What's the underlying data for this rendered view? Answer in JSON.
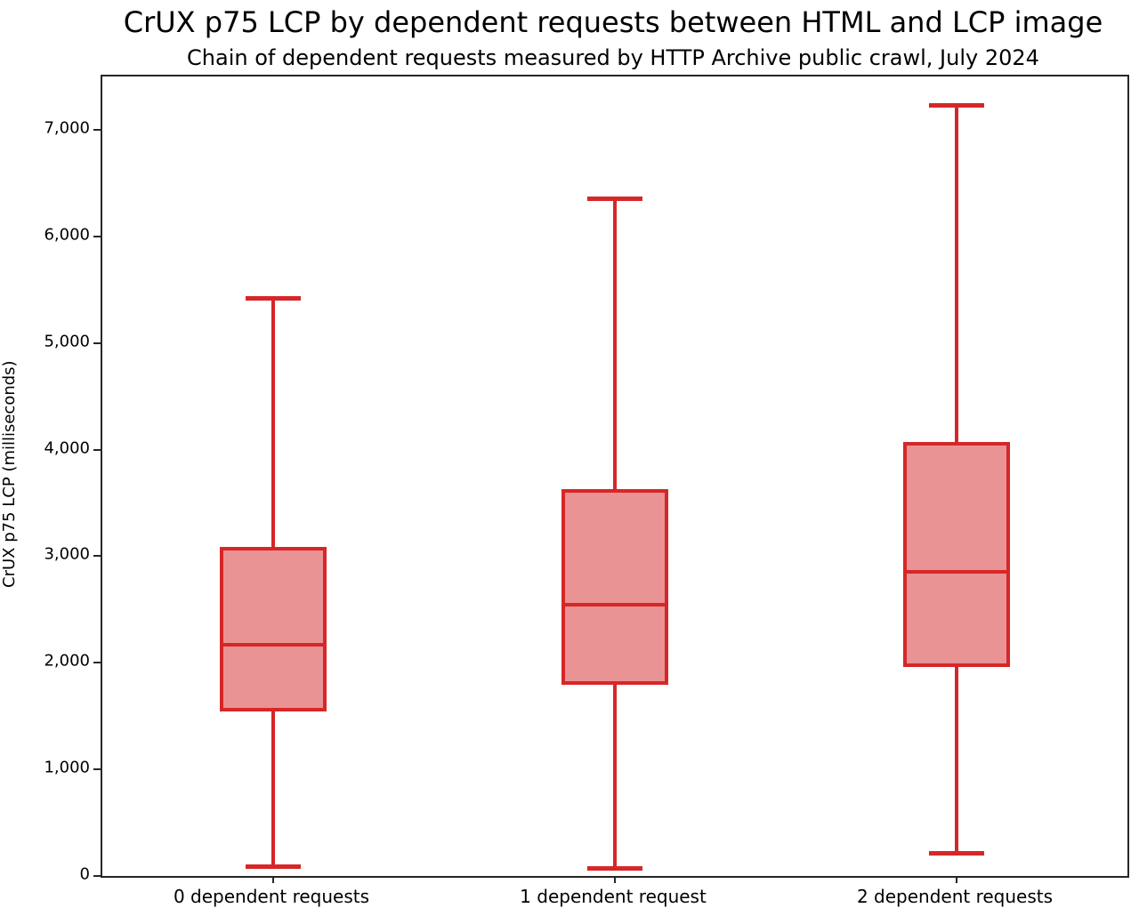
{
  "chart_data": {
    "type": "boxplot",
    "title": "CrUX p75 LCP by dependent requests between HTML and LCP image",
    "subtitle": "Chain of dependent requests measured by HTTP Archive public crawl, July 2024",
    "ylabel": "CrUX p75 LCP (milliseconds)",
    "xlabel": "",
    "ylim": [
      0,
      7500
    ],
    "grid": false,
    "legend": "none",
    "yticks": [
      {
        "value": 0,
        "label": "0"
      },
      {
        "value": 1000,
        "label": "1,000"
      },
      {
        "value": 2000,
        "label": "2,000"
      },
      {
        "value": 3000,
        "label": "3,000"
      },
      {
        "value": 4000,
        "label": "4,000"
      },
      {
        "value": 5000,
        "label": "5,000"
      },
      {
        "value": 6000,
        "label": "6,000"
      },
      {
        "value": 7000,
        "label": "7,000"
      }
    ],
    "categories": [
      "0 dependent requests",
      "1 dependent request",
      "2 dependent requests"
    ],
    "boxes": [
      {
        "label": "0 dependent requests",
        "whisker_low": 90,
        "q1": 1540,
        "median": 2165,
        "q3": 3090,
        "whisker_high": 5420
      },
      {
        "label": "1 dependent request",
        "whisker_low": 75,
        "q1": 1790,
        "median": 2545,
        "q3": 3625,
        "whisker_high": 6360
      },
      {
        "label": "2 dependent requests",
        "whisker_low": 220,
        "q1": 1960,
        "median": 2850,
        "q3": 4070,
        "whisker_high": 7230
      }
    ],
    "colors": {
      "box_edge": "#d62728",
      "box_fill": "#ea9394",
      "axis": "#262626",
      "text": "#000000"
    }
  }
}
